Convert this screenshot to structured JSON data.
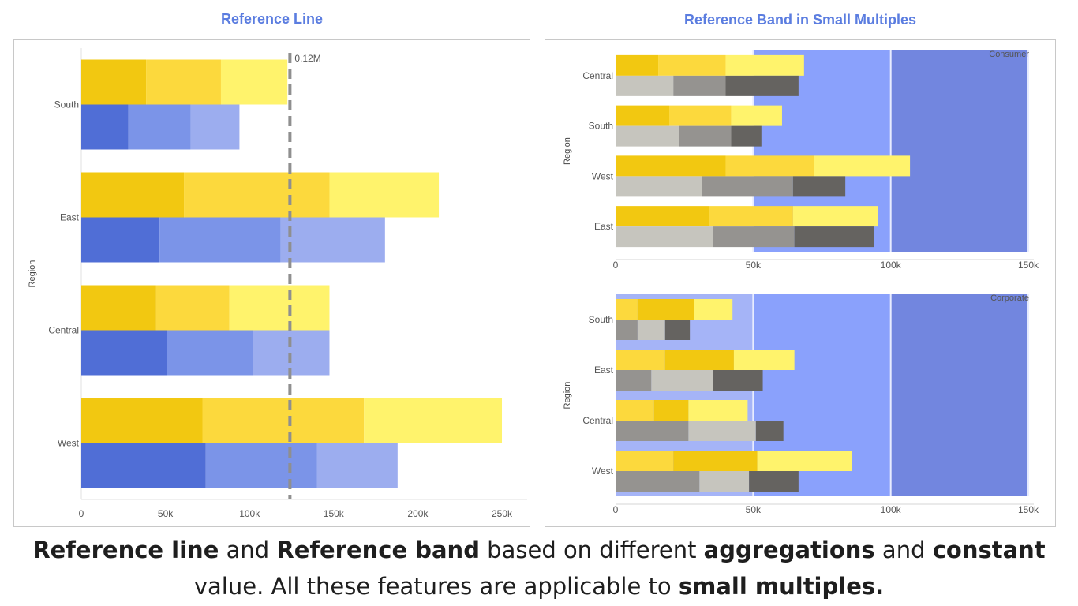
{
  "caption": {
    "part1": "Reference line",
    "part2": " and ",
    "part3": "Reference band",
    "part4": " based on different ",
    "part5": "aggregations",
    "part6": " and ",
    "part7": "constant",
    "part8": " value.  All these features are applicable to ",
    "part9": "small multiples."
  },
  "colors": {
    "gold_dark": "#f2c811",
    "gold_mid": "#fcd93d",
    "gold_light": "#fff36c",
    "blue_dark": "#506ed6",
    "blue_mid": "#7b94e8",
    "blue_light": "#9cadef",
    "grey_light": "#c6c5be",
    "grey_mid": "#959390",
    "grey_dark": "#656360",
    "band_light": "#a5b4f7",
    "band_mid": "#8aa1fc",
    "band_dark": "#7286df",
    "ref_line": "#8f8f8f",
    "title_blue": "#5b7de0"
  },
  "chart_data": [
    {
      "type": "bar",
      "title": "Reference Line",
      "orientation": "horizontal",
      "stacked": true,
      "ylabel": "Region",
      "xlabel": "",
      "categories": [
        "South",
        "East",
        "Central",
        "West"
      ],
      "xlim": [
        0,
        265000
      ],
      "xticks": [
        0,
        50000,
        100000,
        150000,
        200000,
        250000
      ],
      "xtick_labels": [
        "0",
        "50k",
        "100k",
        "150k",
        "200k",
        "250k"
      ],
      "grid": false,
      "groups": [
        {
          "name": "top",
          "colors": [
            "#f2c811",
            "#fcd93d",
            "#fff36c"
          ],
          "segments": [
            [
              38500,
              44500,
              39500
            ],
            [
              61000,
              86500,
              65000
            ],
            [
              44500,
              43500,
              59500
            ],
            [
              72000,
              96000,
              82000
            ]
          ]
        },
        {
          "name": "bottom",
          "colors": [
            "#506ed6",
            "#7b94e8",
            "#9cadef"
          ],
          "segments": [
            [
              28000,
              37000,
              29000
            ],
            [
              46500,
              72000,
              62000
            ],
            [
              51000,
              51000,
              45500
            ],
            [
              74000,
              66000,
              48000
            ]
          ]
        }
      ],
      "reference_line": {
        "value": 124000,
        "label": "0.12M",
        "style": "dashed"
      }
    },
    {
      "type": "bar",
      "title": "Reference Band in Small Multiples",
      "orientation": "horizontal",
      "stacked": true,
      "ylabel": "Region",
      "xlim": [
        0,
        152000
      ],
      "xticks": [
        0,
        50000,
        100000,
        150000
      ],
      "xtick_labels": [
        "0",
        "50k",
        "100k",
        "150k"
      ],
      "facets": [
        {
          "label": "Consumer",
          "categories": [
            "Central",
            "South",
            "West",
            "East"
          ],
          "bands": [
            {
              "from": 50000,
              "to": 100000,
              "color": "#8aa1fc"
            },
            {
              "from": 100000,
              "to": 150000,
              "color": "#7286df"
            }
          ],
          "groups": [
            {
              "name": "top",
              "colors": [
                "#f2c811",
                "#fcd93d",
                "#fff36c"
              ],
              "segments": [
                [
                  15500,
                  24500,
                  28500
                ],
                [
                  19500,
                  22500,
                  18500
                ],
                [
                  40000,
                  32000,
                  35000
                ],
                [
                  34000,
                  30500,
                  31000
                ]
              ]
            },
            {
              "name": "bottom",
              "colors": [
                "#c6c5be",
                "#959390",
                "#656360"
              ],
              "segments": [
                [
                  21000,
                  19000,
                  26500
                ],
                [
                  23000,
                  19000,
                  11000
                ],
                [
                  31500,
                  33000,
                  19000
                ],
                [
                  35500,
                  29500,
                  29000
                ]
              ]
            }
          ]
        },
        {
          "label": "Corporate",
          "categories": [
            "South",
            "East",
            "Central",
            "West"
          ],
          "bands": [
            {
              "from": 0,
              "to": 50000,
              "color": "#a5b4f7"
            },
            {
              "from": 50000,
              "to": 100000,
              "color": "#8aa1fc"
            },
            {
              "from": 100000,
              "to": 150000,
              "color": "#7286df"
            }
          ],
          "groups": [
            {
              "name": "top",
              "colors": [
                "#fcd93d",
                "#f2c811",
                "#fff36c"
              ],
              "segments": [
                [
                  8000,
                  20500,
                  14000
                ],
                [
                  18000,
                  25000,
                  22000
                ],
                [
                  14000,
                  12500,
                  21500
                ],
                [
                  21000,
                  30500,
                  34500
                ]
              ]
            },
            {
              "name": "bottom",
              "colors": [
                "#959390",
                "#c6c5be",
                "#656360"
              ],
              "segments": [
                [
                  8000,
                  10000,
                  9000
                ],
                [
                  13000,
                  22500,
                  18000
                ],
                [
                  26500,
                  24500,
                  10000
                ],
                [
                  30500,
                  18000,
                  18000
                ]
              ]
            }
          ]
        }
      ]
    }
  ]
}
